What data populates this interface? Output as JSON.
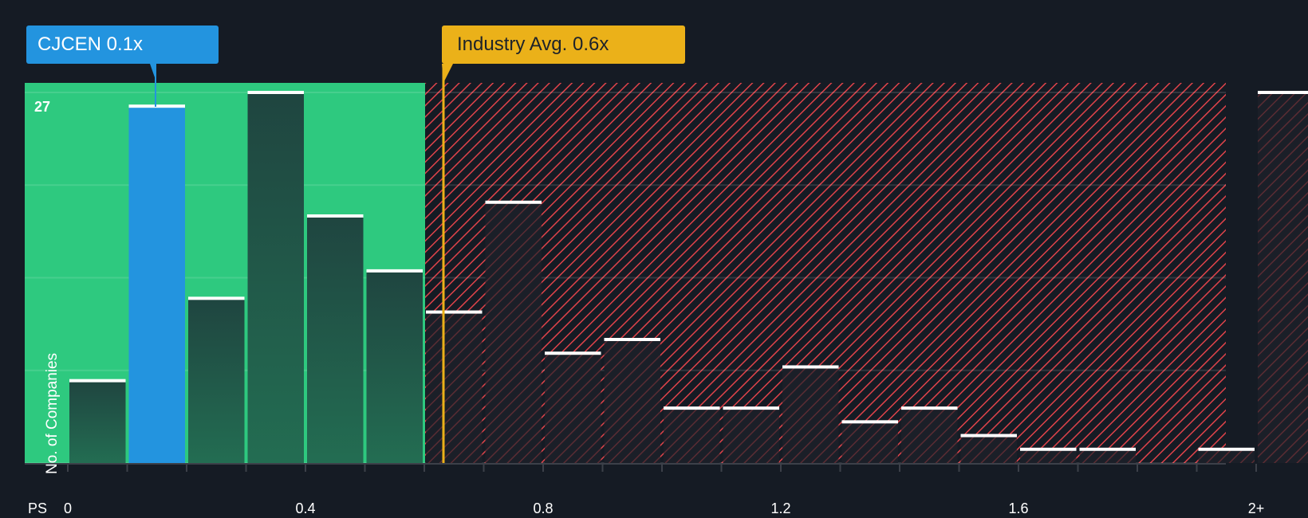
{
  "callouts": {
    "company": "CJCEN 0.1x",
    "industry": "Industry Avg. 0.6x"
  },
  "axis": {
    "y_title": "No. of Companies",
    "y_top_label": "27",
    "x_prefix": "PS",
    "x_ticks": [
      {
        "label": "0",
        "value": 0
      },
      {
        "label": "0.4",
        "value": 0.4
      },
      {
        "label": "0.8",
        "value": 0.8
      },
      {
        "label": "1.2",
        "value": 1.2
      },
      {
        "label": "1.6",
        "value": 1.6
      },
      {
        "label": "2+",
        "value": 2.0
      }
    ]
  },
  "colors": {
    "background": "#151b24",
    "fair_zone": "#2ec97f",
    "company_bar": "#2394df",
    "industry_line": "#ebb119",
    "hatch": "#e0434a",
    "bar_dark": "#214a3f",
    "bar_cap": "#ffffff"
  },
  "chart_data": {
    "type": "bar",
    "title": "Price-to-Sales ratio distribution",
    "xlabel": "PS",
    "ylabel": "No. of Companies",
    "ylim": [
      0,
      27
    ],
    "grid": true,
    "highlight": {
      "label": "CJCEN",
      "value": 0.1,
      "bin_index": 1
    },
    "industry_average": 0.6,
    "categories": [
      "0-0.1",
      "0.1-0.2",
      "0.2-0.3",
      "0.3-0.4",
      "0.4-0.5",
      "0.5-0.6",
      "0.6-0.7",
      "0.7-0.8",
      "0.8-0.9",
      "0.9-1.0",
      "1.0-1.1",
      "1.1-1.2",
      "1.2-1.3",
      "1.3-1.4",
      "1.4-1.5",
      "1.5-1.6",
      "1.6-1.7",
      "1.7-1.8",
      "1.8-1.9",
      "1.9-2.0",
      "2+"
    ],
    "values": [
      6,
      26,
      12,
      27,
      18,
      14,
      11,
      19,
      8,
      9,
      4,
      4,
      7,
      3,
      4,
      2,
      1,
      1,
      0,
      1,
      27
    ]
  }
}
